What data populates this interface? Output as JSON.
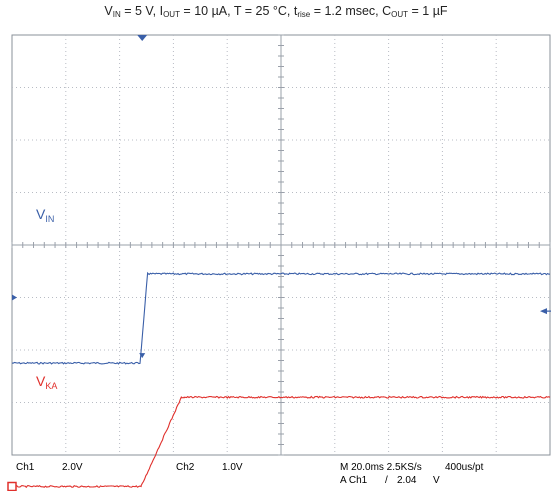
{
  "chart_data": {
    "type": "line",
    "title": {
      "vin": {
        "main": "V",
        "sub": "IN",
        "after": " = 5 V, "
      },
      "iout": {
        "main": "I",
        "sub": "OUT",
        "after": " = 10 µA, T = 25 °C, "
      },
      "trise": {
        "main": "t",
        "sub": "rise",
        "after": " = 1.2 msec, "
      },
      "cout": {
        "main": "C",
        "sub": "OUT",
        "after": " = 1 µF"
      }
    },
    "grid": true,
    "x_divisions": 10,
    "y_divisions": 8,
    "series": [
      {
        "name_main": "V",
        "name_sub": "IN",
        "color": "#3a5fa8",
        "points": [
          [
            0,
            6.25
          ],
          [
            2.38,
            6.25
          ],
          [
            2.52,
            4.55
          ],
          [
            2.55,
            4.55
          ],
          [
            10,
            4.55
          ]
        ],
        "ground_marker_div": 5
      },
      {
        "name_main": "V",
        "name_sub": "KA",
        "color": "#e0302c",
        "points": [
          [
            0,
            8.6
          ],
          [
            2.4,
            8.6
          ],
          [
            3.15,
            6.9
          ],
          [
            3.2,
            6.9
          ],
          [
            10,
            6.9
          ]
        ],
        "ground_marker_div": 8.6
      }
    ],
    "trigger_position_div": 2.42
  },
  "readouts": {
    "ch1_label": "Ch1",
    "ch1_scale": "2.0V",
    "ch2_label": "Ch2",
    "ch2_scale": "1.0V",
    "timebase": "M 20.0ms 2.5KS/s",
    "record": "400us/pt",
    "trigger_source": "A  Ch1",
    "trigger_slope": "/",
    "trigger_level": "2.04",
    "trigger_unit": "V"
  },
  "colors": {
    "grid": "#b8bcc4",
    "axis": "#9aa0aa",
    "frame": "#8a9099",
    "ch1": "#3a5fa8",
    "ch2": "#e0302c",
    "readout": "#4a67a8"
  }
}
